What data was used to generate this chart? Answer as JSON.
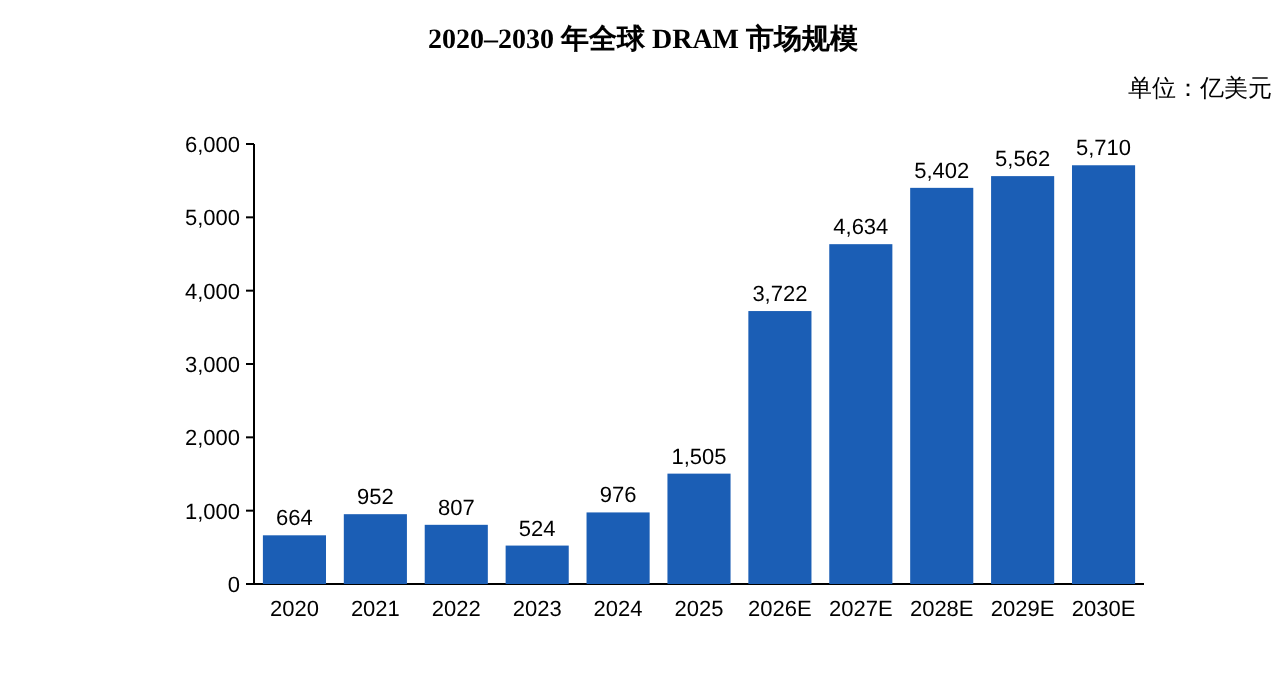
{
  "chart_data": {
    "type": "bar",
    "title": "2020–2030 年全球 DRAM 市场规模",
    "annotations": [
      "单位：亿美元"
    ],
    "categories": [
      "2020",
      "2021",
      "2022",
      "2023",
      "2024",
      "2025",
      "2026E",
      "2027E",
      "2028E",
      "2029E",
      "2030E"
    ],
    "values": [
      664,
      952,
      807,
      524,
      976,
      1505,
      3722,
      4634,
      5402,
      5562,
      5710
    ],
    "value_labels": [
      "664",
      "952",
      "807",
      "524",
      "976",
      "1,505",
      "3,722",
      "4,634",
      "5,402",
      "5,562",
      "5,710"
    ],
    "color": "#1b5eb5",
    "ylim": [
      0,
      6000
    ],
    "yticks": [
      {
        "value": 0,
        "label": "0"
      },
      {
        "value": 1000,
        "label": "1,000"
      },
      {
        "value": 2000,
        "label": "2,000"
      },
      {
        "value": 3000,
        "label": "3,000"
      },
      {
        "value": 4000,
        "label": "4,000"
      },
      {
        "value": 5000,
        "label": "5,000"
      },
      {
        "value": 6000,
        "label": "6,000"
      }
    ],
    "grid": false
  }
}
